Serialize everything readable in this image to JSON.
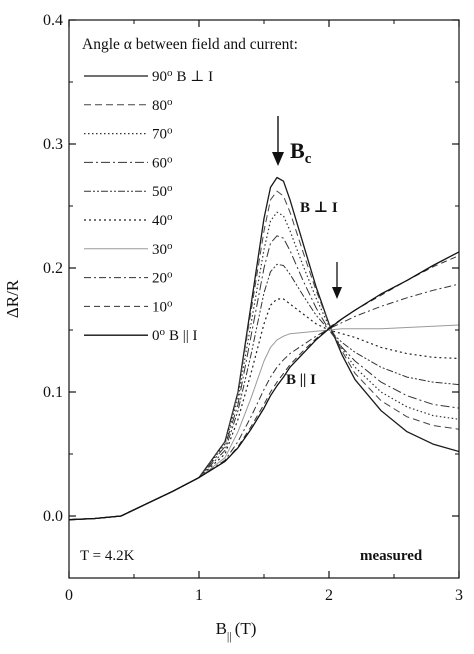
{
  "chart_data": {
    "type": "line",
    "title": "",
    "xlabel": "B",
    "xlabel_subscript": "||",
    "xlabel_unit": "(T)",
    "ylabel": "ΔR/R",
    "xlim": [
      0,
      3
    ],
    "ylim": [
      -0.05,
      0.4
    ],
    "xticks": [
      0,
      1,
      2,
      3
    ],
    "xtick_labels": [
      "0",
      "1",
      "2",
      "3"
    ],
    "yticks": [
      0.0,
      0.1,
      0.2,
      0.3,
      0.4
    ],
    "ytick_labels": [
      "0.0",
      "0.1",
      "0.2",
      "0.3",
      "0.4"
    ],
    "grid": false,
    "legend": {
      "title": "Angle α between field and current:",
      "placement": "top-left"
    },
    "annotations": {
      "bc_main": "B",
      "bc_sub": "c",
      "b_perp": "B ⊥ I",
      "b_par": "B || I",
      "temperature": "T = 4.2K",
      "measured": "measured"
    },
    "series": [
      {
        "name": "90o B ⊥ I",
        "angle": "90",
        "extra": "B ⊥ I",
        "dash": "",
        "color": "#1a1a1a",
        "width": 1.3,
        "x": [
          0,
          0.2,
          0.4,
          0.6,
          0.8,
          1.0,
          1.2,
          1.3,
          1.4,
          1.5,
          1.55,
          1.6,
          1.65,
          1.7,
          1.8,
          1.9,
          2.0,
          2.1,
          2.2,
          2.4,
          2.6,
          2.8,
          3.0
        ],
        "y": [
          -0.003,
          -0.002,
          0.0,
          0.01,
          0.02,
          0.031,
          0.06,
          0.1,
          0.17,
          0.24,
          0.265,
          0.273,
          0.27,
          0.255,
          0.22,
          0.185,
          0.155,
          0.13,
          0.11,
          0.085,
          0.068,
          0.058,
          0.052
        ]
      },
      {
        "name": "80o",
        "angle": "80",
        "extra": "",
        "dash": "7,4",
        "color": "#444444",
        "width": 1.0,
        "x": [
          0,
          0.2,
          0.4,
          0.6,
          0.8,
          1.0,
          1.2,
          1.3,
          1.4,
          1.5,
          1.55,
          1.6,
          1.65,
          1.7,
          1.8,
          1.9,
          2.0,
          2.1,
          2.2,
          2.4,
          2.6,
          2.8,
          3.0
        ],
        "y": [
          -0.003,
          -0.002,
          0.0,
          0.01,
          0.02,
          0.031,
          0.06,
          0.1,
          0.165,
          0.23,
          0.255,
          0.262,
          0.258,
          0.245,
          0.213,
          0.182,
          0.155,
          0.133,
          0.115,
          0.093,
          0.08,
          0.073,
          0.07
        ]
      },
      {
        "name": "70o",
        "angle": "70",
        "extra": "",
        "dash": "1.5,2.5",
        "color": "#333333",
        "width": 1.2,
        "x": [
          0,
          0.2,
          0.4,
          0.6,
          0.8,
          1.0,
          1.2,
          1.3,
          1.4,
          1.5,
          1.55,
          1.6,
          1.65,
          1.7,
          1.8,
          1.9,
          2.0,
          2.1,
          2.2,
          2.4,
          2.6,
          2.8,
          3.0
        ],
        "y": [
          -0.003,
          -0.002,
          0.0,
          0.01,
          0.02,
          0.031,
          0.058,
          0.095,
          0.155,
          0.215,
          0.238,
          0.245,
          0.242,
          0.23,
          0.202,
          0.176,
          0.153,
          0.135,
          0.12,
          0.1,
          0.088,
          0.081,
          0.078
        ]
      },
      {
        "name": "60o",
        "angle": "60",
        "extra": "",
        "dash": "9,3,2,3",
        "color": "#333333",
        "width": 1.0,
        "x": [
          0,
          0.2,
          0.4,
          0.6,
          0.8,
          1.0,
          1.2,
          1.3,
          1.4,
          1.5,
          1.55,
          1.6,
          1.65,
          1.7,
          1.8,
          1.9,
          2.0,
          2.1,
          2.2,
          2.4,
          2.6,
          2.8,
          3.0
        ],
        "y": [
          -0.003,
          -0.002,
          0.0,
          0.01,
          0.02,
          0.031,
          0.056,
          0.09,
          0.145,
          0.2,
          0.22,
          0.226,
          0.224,
          0.214,
          0.19,
          0.168,
          0.15,
          0.136,
          0.125,
          0.108,
          0.097,
          0.09,
          0.087
        ]
      },
      {
        "name": "50o",
        "angle": "50",
        "extra": "",
        "dash": "7,2,2,2,2,2",
        "color": "#333333",
        "width": 1.0,
        "x": [
          0,
          0.2,
          0.4,
          0.6,
          0.8,
          1.0,
          1.2,
          1.3,
          1.4,
          1.5,
          1.55,
          1.6,
          1.65,
          1.7,
          1.8,
          1.9,
          2.0,
          2.1,
          2.2,
          2.4,
          2.6,
          2.8,
          3.0
        ],
        "y": [
          -0.003,
          -0.002,
          0.0,
          0.01,
          0.02,
          0.031,
          0.053,
          0.085,
          0.13,
          0.18,
          0.197,
          0.203,
          0.202,
          0.195,
          0.178,
          0.162,
          0.15,
          0.14,
          0.132,
          0.12,
          0.112,
          0.108,
          0.106
        ]
      },
      {
        "name": "40o",
        "angle": "40",
        "extra": "",
        "dash": "2,3",
        "color": "#222222",
        "width": 1.2,
        "x": [
          0,
          0.2,
          0.4,
          0.6,
          0.8,
          1.0,
          1.2,
          1.3,
          1.4,
          1.5,
          1.55,
          1.6,
          1.65,
          1.7,
          1.8,
          1.9,
          2.0,
          2.1,
          2.2,
          2.4,
          2.6,
          2.8,
          3.0
        ],
        "y": [
          -0.003,
          -0.002,
          0.0,
          0.01,
          0.02,
          0.031,
          0.05,
          0.078,
          0.115,
          0.155,
          0.17,
          0.175,
          0.175,
          0.171,
          0.163,
          0.155,
          0.15,
          0.147,
          0.144,
          0.136,
          0.131,
          0.128,
          0.127
        ]
      },
      {
        "name": "30o",
        "angle": "30",
        "extra": "",
        "dash": "",
        "color": "#9a9a9a",
        "width": 1.0,
        "x": [
          0,
          0.2,
          0.4,
          0.6,
          0.8,
          1.0,
          1.2,
          1.3,
          1.4,
          1.5,
          1.55,
          1.6,
          1.65,
          1.7,
          1.8,
          1.9,
          2.0,
          2.1,
          2.2,
          2.4,
          2.6,
          2.8,
          3.0
        ],
        "y": [
          -0.003,
          -0.002,
          0.0,
          0.01,
          0.02,
          0.031,
          0.047,
          0.068,
          0.095,
          0.125,
          0.136,
          0.142,
          0.145,
          0.147,
          0.148,
          0.149,
          0.15,
          0.151,
          0.151,
          0.151,
          0.152,
          0.153,
          0.154
        ]
      },
      {
        "name": "20o",
        "angle": "20",
        "extra": "",
        "dash": "7,3,2,3",
        "color": "#333333",
        "width": 1.0,
        "x": [
          0,
          0.2,
          0.4,
          0.6,
          0.8,
          1.0,
          1.2,
          1.3,
          1.4,
          1.5,
          1.55,
          1.6,
          1.65,
          1.7,
          1.8,
          1.9,
          2.0,
          2.1,
          2.2,
          2.4,
          2.6,
          2.8,
          3.0
        ],
        "y": [
          -0.003,
          -0.002,
          0.0,
          0.01,
          0.02,
          0.031,
          0.045,
          0.06,
          0.08,
          0.102,
          0.112,
          0.12,
          0.126,
          0.131,
          0.138,
          0.145,
          0.151,
          0.156,
          0.161,
          0.169,
          0.176,
          0.182,
          0.187
        ]
      },
      {
        "name": "10o",
        "angle": "10",
        "extra": "",
        "dash": "6,4",
        "color": "#333333",
        "width": 1.0,
        "x": [
          0,
          0.2,
          0.4,
          0.6,
          0.8,
          1.0,
          1.2,
          1.3,
          1.4,
          1.5,
          1.55,
          1.6,
          1.65,
          1.7,
          1.8,
          1.9,
          2.0,
          2.1,
          2.2,
          2.4,
          2.6,
          2.8,
          3.0
        ],
        "y": [
          -0.003,
          -0.002,
          0.0,
          0.01,
          0.02,
          0.031,
          0.044,
          0.056,
          0.072,
          0.09,
          0.1,
          0.108,
          0.115,
          0.122,
          0.133,
          0.143,
          0.152,
          0.159,
          0.166,
          0.178,
          0.19,
          0.201,
          0.21
        ]
      },
      {
        "name": "0o B || I",
        "angle": "0",
        "extra": "B || I",
        "dash": "",
        "color": "#111111",
        "width": 1.3,
        "x": [
          0,
          0.2,
          0.4,
          0.6,
          0.8,
          1.0,
          1.2,
          1.3,
          1.4,
          1.5,
          1.55,
          1.6,
          1.65,
          1.7,
          1.8,
          1.9,
          2.0,
          2.1,
          2.2,
          2.4,
          2.6,
          2.8,
          3.0
        ],
        "y": [
          -0.003,
          -0.002,
          0.0,
          0.01,
          0.02,
          0.031,
          0.044,
          0.055,
          0.07,
          0.087,
          0.097,
          0.105,
          0.112,
          0.12,
          0.131,
          0.142,
          0.151,
          0.159,
          0.166,
          0.179,
          0.19,
          0.202,
          0.213
        ]
      }
    ]
  }
}
